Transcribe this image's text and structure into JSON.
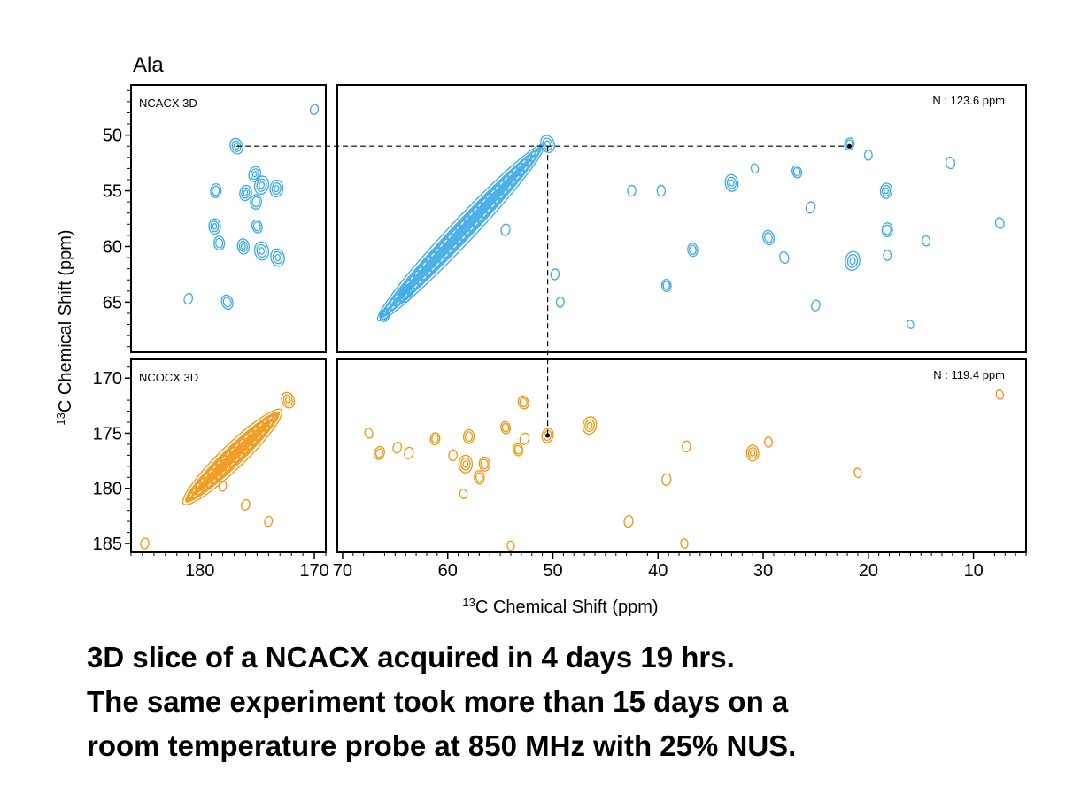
{
  "figure": {
    "residue_label": "Ala",
    "y_axis_label_sup": "13",
    "y_axis_label_rest": "C Chemical Shift  (ppm)",
    "x_axis_label_sup": "13",
    "x_axis_label_rest": "C Chemical Shift  (ppm)",
    "colors": {
      "ncacx": "#3aa9e6",
      "ncocx": "#f0940f",
      "frame": "#000000"
    }
  },
  "caption": {
    "line1": "3D slice of a NCACX acquired in 4 days 19 hrs.",
    "line2": "The same experiment took more than 15 days on a",
    "line3": "room temperature probe at 850 MHz with 25% NUS."
  },
  "chart_data": [
    {
      "id": "ncacx-narrow",
      "type": "scatter",
      "panel_label": "NCACX 3D",
      "slice_label": "",
      "xlim": [
        186,
        169
      ],
      "ylim": [
        45.5,
        69.5
      ],
      "x_ticks": [],
      "y_ticks": [
        50,
        55,
        60,
        65
      ],
      "color_key": "ncacx",
      "peaks": [
        {
          "x": 176.8,
          "y": 51.0,
          "s": 1.2
        },
        {
          "x": 175.2,
          "y": 53.5,
          "s": 1.1
        },
        {
          "x": 174.6,
          "y": 54.5,
          "s": 1.5
        },
        {
          "x": 176.0,
          "y": 55.2,
          "s": 1.1
        },
        {
          "x": 173.3,
          "y": 54.8,
          "s": 1.3
        },
        {
          "x": 178.6,
          "y": 55.0,
          "s": 0.9
        },
        {
          "x": 175.1,
          "y": 56.0,
          "s": 1.0
        },
        {
          "x": 178.7,
          "y": 58.2,
          "s": 1.1
        },
        {
          "x": 178.3,
          "y": 59.7,
          "s": 0.9
        },
        {
          "x": 176.2,
          "y": 60.0,
          "s": 1.1
        },
        {
          "x": 174.6,
          "y": 60.4,
          "s": 1.5
        },
        {
          "x": 173.2,
          "y": 61.0,
          "s": 1.4
        },
        {
          "x": 175.0,
          "y": 58.2,
          "s": 0.8
        },
        {
          "x": 177.6,
          "y": 65.0,
          "s": 1.0
        },
        {
          "x": 181.0,
          "y": 64.7,
          "s": 0.5
        },
        {
          "x": 170.0,
          "y": 47.7,
          "s": 0.4
        }
      ]
    },
    {
      "id": "ncacx-wide",
      "type": "scatter",
      "panel_label": "",
      "slice_label": "N : 123.6 ppm",
      "xlim": [
        70.5,
        5
      ],
      "ylim": [
        45.5,
        69.5
      ],
      "x_ticks": [],
      "y_ticks": [],
      "color_key": "ncacx",
      "diagonal": {
        "from": [
          66.0,
          66.0
        ],
        "to": [
          51.5,
          51.5
        ]
      },
      "peaks": [
        {
          "x": 50.5,
          "y": 50.8,
          "s": 1.4
        },
        {
          "x": 64.0,
          "y": 64.3,
          "s": 1.2
        },
        {
          "x": 66.0,
          "y": 66.2,
          "s": 0.7
        },
        {
          "x": 54.5,
          "y": 58.5,
          "s": 0.6
        },
        {
          "x": 49.8,
          "y": 62.5,
          "s": 0.5
        },
        {
          "x": 49.3,
          "y": 65.0,
          "s": 0.4
        },
        {
          "x": 42.5,
          "y": 55.0,
          "s": 0.5
        },
        {
          "x": 39.7,
          "y": 55.0,
          "s": 0.5
        },
        {
          "x": 39.2,
          "y": 63.5,
          "s": 0.7
        },
        {
          "x": 36.7,
          "y": 60.3,
          "s": 0.8
        },
        {
          "x": 33.0,
          "y": 54.3,
          "s": 1.3
        },
        {
          "x": 29.5,
          "y": 59.2,
          "s": 1.0
        },
        {
          "x": 28.0,
          "y": 61.0,
          "s": 0.6
        },
        {
          "x": 26.8,
          "y": 53.3,
          "s": 0.7
        },
        {
          "x": 25.5,
          "y": 56.5,
          "s": 0.6
        },
        {
          "x": 25.0,
          "y": 65.3,
          "s": 0.5
        },
        {
          "x": 21.8,
          "y": 50.8,
          "s": 0.7
        },
        {
          "x": 21.5,
          "y": 61.3,
          "s": 1.6
        },
        {
          "x": 18.3,
          "y": 55.0,
          "s": 1.1
        },
        {
          "x": 18.2,
          "y": 58.5,
          "s": 0.9
        },
        {
          "x": 20.0,
          "y": 51.8,
          "s": 0.4
        },
        {
          "x": 18.2,
          "y": 60.8,
          "s": 0.4
        },
        {
          "x": 14.5,
          "y": 59.5,
          "s": 0.4
        },
        {
          "x": 12.2,
          "y": 52.5,
          "s": 0.6
        },
        {
          "x": 7.5,
          "y": 57.9,
          "s": 0.5
        },
        {
          "x": 30.8,
          "y": 53.0,
          "s": 0.3
        },
        {
          "x": 16.0,
          "y": 67.0,
          "s": 0.2
        }
      ]
    },
    {
      "id": "ncocx-narrow",
      "type": "scatter",
      "panel_label": "NCOCX 3D",
      "slice_label": "",
      "xlim": [
        186,
        169
      ],
      "ylim": [
        168.3,
        185.8
      ],
      "x_ticks": [
        180,
        170
      ],
      "y_ticks": [
        170,
        175,
        180,
        185
      ],
      "color_key": "ncocx",
      "diagonal": {
        "from": [
          180.8,
          180.8
        ],
        "to": [
          173.5,
          173.5
        ]
      },
      "peaks": [
        {
          "x": 172.3,
          "y": 172.0,
          "s": 1.2
        },
        {
          "x": 176.0,
          "y": 181.5,
          "s": 0.5
        },
        {
          "x": 174.0,
          "y": 183.0,
          "s": 0.4
        },
        {
          "x": 184.8,
          "y": 185.0,
          "s": 0.5
        },
        {
          "x": 178.0,
          "y": 179.8,
          "s": 0.4
        }
      ]
    },
    {
      "id": "ncocx-wide",
      "type": "scatter",
      "panel_label": "",
      "slice_label": "N : 119.4 ppm",
      "xlim": [
        70.5,
        5
      ],
      "ylim": [
        168.3,
        185.8
      ],
      "x_ticks": [
        70,
        60,
        50,
        40,
        30,
        20,
        10
      ],
      "y_ticks": [],
      "color_key": "ncocx",
      "peaks": [
        {
          "x": 67.5,
          "y": 175.0,
          "s": 0.4
        },
        {
          "x": 66.5,
          "y": 176.8,
          "s": 0.8
        },
        {
          "x": 64.8,
          "y": 176.3,
          "s": 0.5
        },
        {
          "x": 63.7,
          "y": 176.8,
          "s": 0.6
        },
        {
          "x": 61.2,
          "y": 175.5,
          "s": 0.7
        },
        {
          "x": 59.5,
          "y": 177.0,
          "s": 0.5
        },
        {
          "x": 58.0,
          "y": 175.3,
          "s": 0.9
        },
        {
          "x": 58.3,
          "y": 177.8,
          "s": 1.4
        },
        {
          "x": 57.0,
          "y": 179.0,
          "s": 0.8
        },
        {
          "x": 56.5,
          "y": 177.8,
          "s": 0.9
        },
        {
          "x": 58.5,
          "y": 180.5,
          "s": 0.3
        },
        {
          "x": 54.5,
          "y": 174.5,
          "s": 0.7
        },
        {
          "x": 53.3,
          "y": 176.5,
          "s": 0.7
        },
        {
          "x": 52.8,
          "y": 172.2,
          "s": 0.8
        },
        {
          "x": 52.7,
          "y": 175.5,
          "s": 0.6
        },
        {
          "x": 50.5,
          "y": 175.2,
          "s": 1.0
        },
        {
          "x": 46.5,
          "y": 174.3,
          "s": 1.4
        },
        {
          "x": 42.8,
          "y": 183.0,
          "s": 0.6
        },
        {
          "x": 39.2,
          "y": 179.2,
          "s": 0.6
        },
        {
          "x": 37.3,
          "y": 176.2,
          "s": 0.5
        },
        {
          "x": 31.0,
          "y": 176.8,
          "s": 1.2
        },
        {
          "x": 29.5,
          "y": 175.8,
          "s": 0.4
        },
        {
          "x": 37.5,
          "y": 185.0,
          "s": 0.3
        },
        {
          "x": 54.0,
          "y": 185.2,
          "s": 0.3
        },
        {
          "x": 21.0,
          "y": 178.6,
          "s": 0.3
        },
        {
          "x": 7.5,
          "y": 171.5,
          "s": 0.3
        }
      ]
    }
  ],
  "connectors": [
    {
      "points": [
        [
          176.8,
          51.0,
          "ncacx-narrow"
        ],
        [
          50.5,
          51.0,
          "ncacx-wide"
        ],
        [
          21.8,
          51.0,
          "ncacx-wide"
        ]
      ]
    },
    {
      "points": [
        [
          50.5,
          51.0,
          "ncacx-wide"
        ],
        [
          50.5,
          175.2,
          "ncocx-wide"
        ]
      ]
    }
  ]
}
